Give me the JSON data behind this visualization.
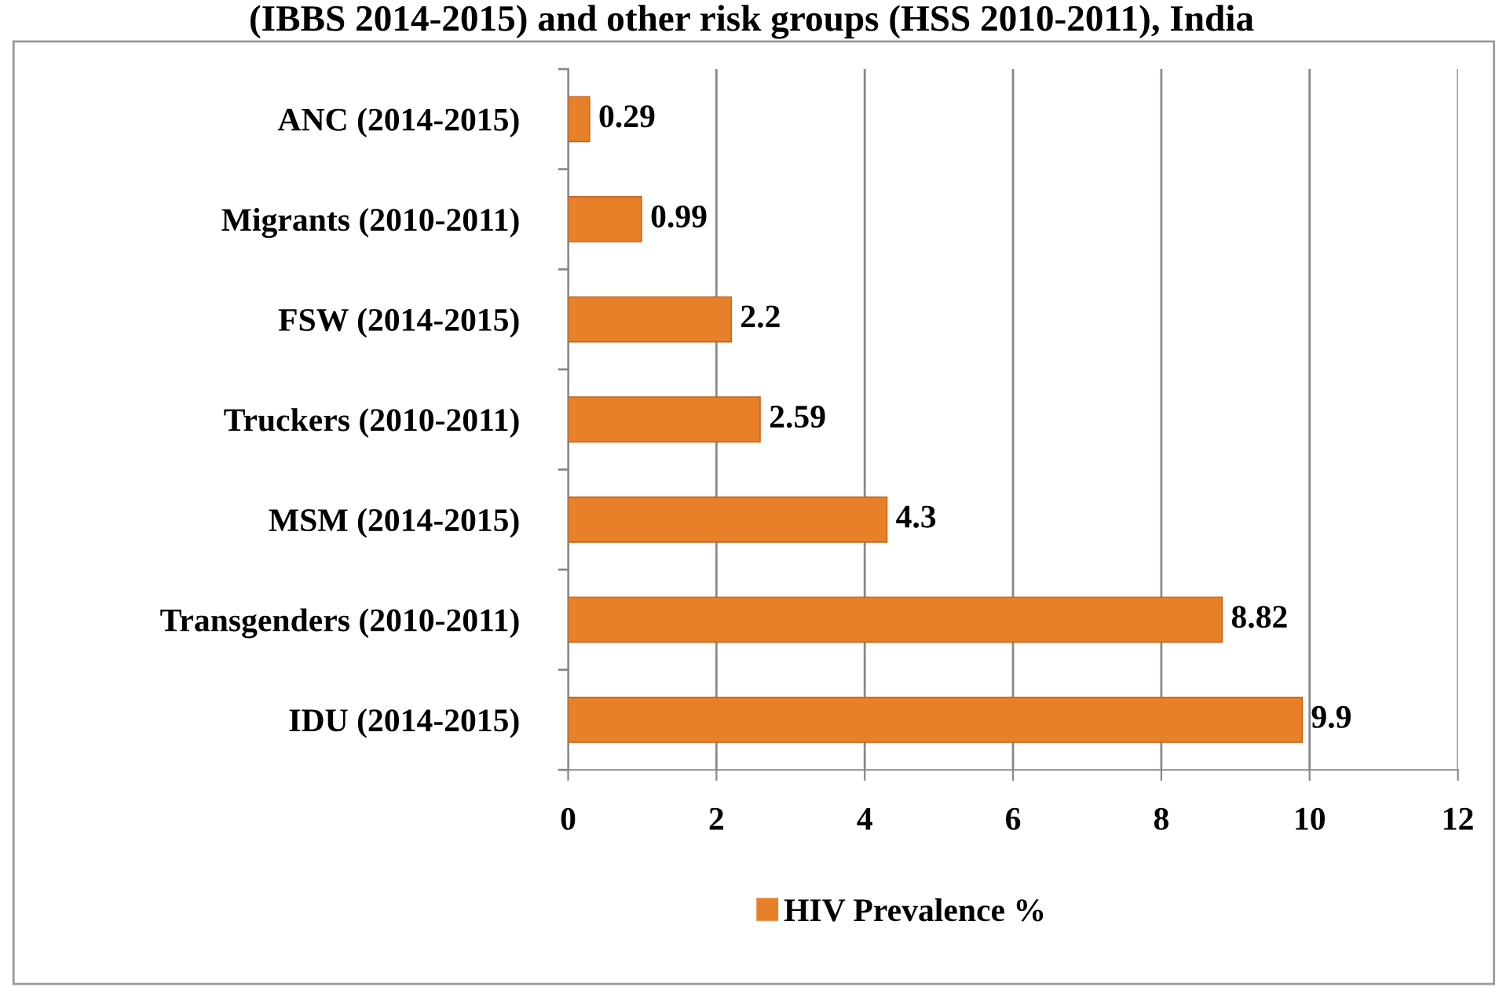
{
  "chart_data": {
    "type": "bar",
    "orientation": "horizontal",
    "title": "(IBBS 2014-2015) and other risk groups (HSS 2010-2011), India",
    "categories": [
      "ANC (2014-2015)",
      "Migrants (2010-2011)",
      "FSW (2014-2015)",
      "Truckers (2010-2011)",
      "MSM (2014-2015)",
      "Transgenders (2010-2011)",
      "IDU (2014-2015)"
    ],
    "series": [
      {
        "name": "HIV Prevalence %",
        "color": "#e8802a",
        "values": [
          0.29,
          0.99,
          2.2,
          2.59,
          4.3,
          8.82,
          9.9
        ]
      }
    ],
    "xlim": [
      0,
      12
    ],
    "xticks": [
      0,
      2,
      4,
      6,
      8,
      10,
      12
    ],
    "grid": "x",
    "legend": "bottom",
    "data_labels": true
  }
}
